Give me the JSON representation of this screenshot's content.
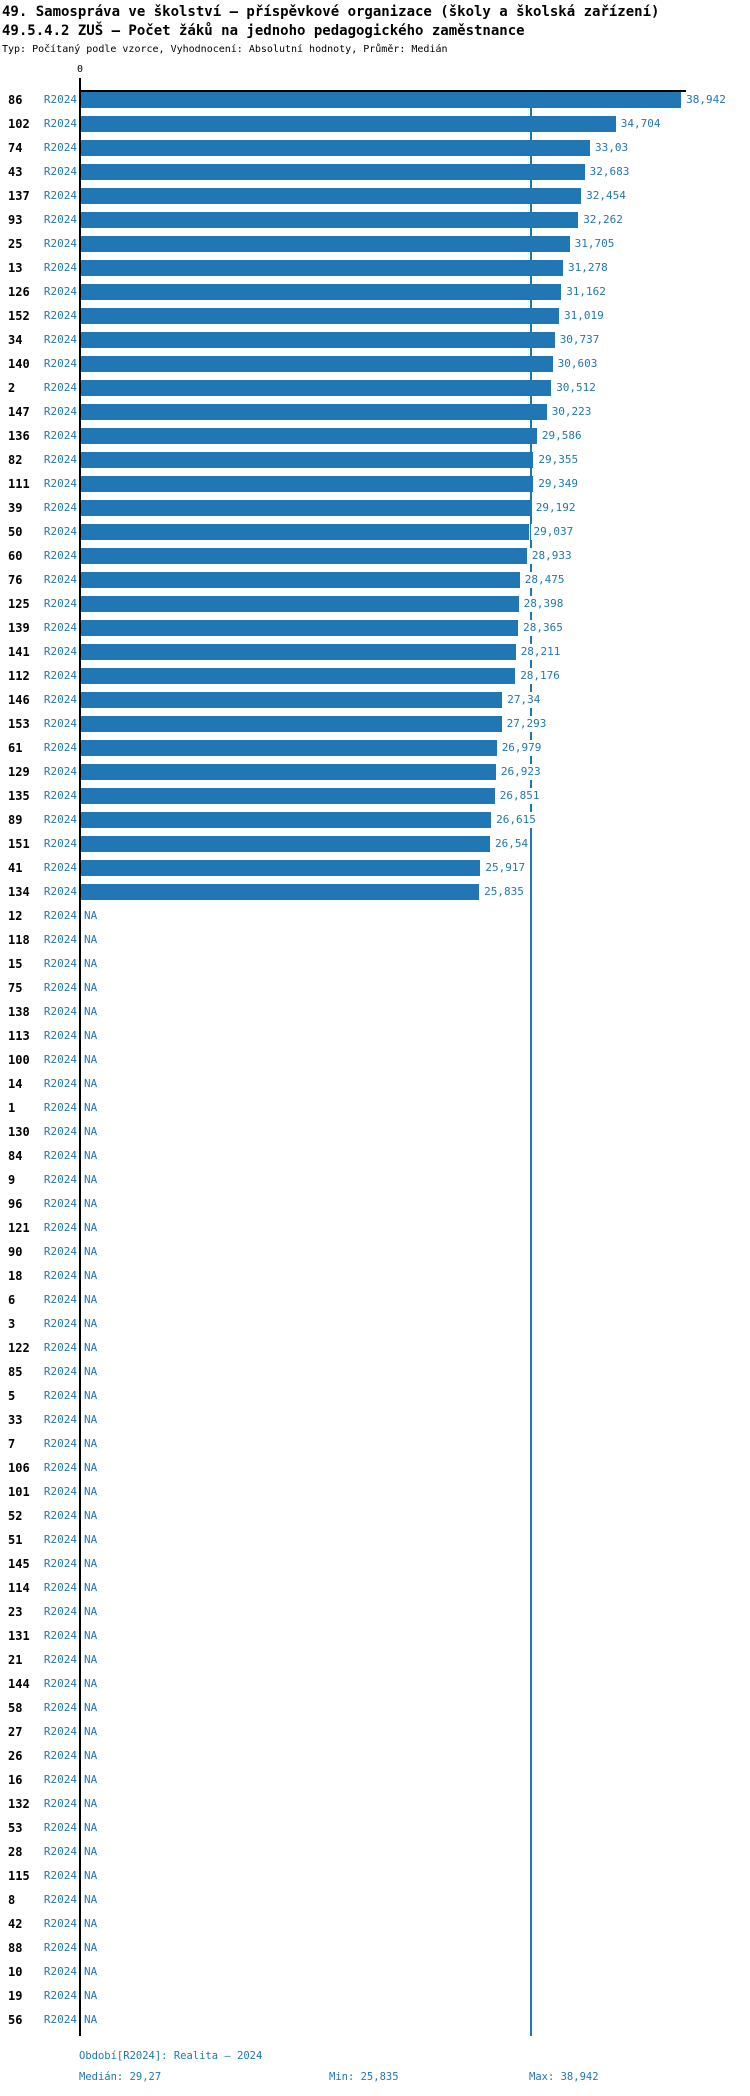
{
  "header": {
    "title": "49. Samospráva ve školství – příspěvkové organizace (školy a školská zařízení)",
    "subtitle": "49.5.4.2 ZUŠ – Počet žáků na jednoho pedagogického zaměstnance",
    "meta": "Typ: Počítaný podle vzorce, Vyhodnocení: Absolutní hodnoty, Průměr: Medián"
  },
  "chart_data": {
    "type": "bar",
    "orientation": "horizontal",
    "title": "49.5.4.2 ZUŠ – Počet žáků na jednoho pedagogického zaměstnance",
    "x_axis": {
      "origin_label": "0",
      "range": [
        0,
        39.3
      ],
      "grid": false
    },
    "legend": "none",
    "bar_color": "#2077b4",
    "median_line_value": 29.27,
    "median_line_color": "#1f77b4",
    "na_text": "NA",
    "rows": [
      {
        "id": "86",
        "period": "R2024",
        "display": "38,942",
        "value": 38.942
      },
      {
        "id": "102",
        "period": "R2024",
        "display": "34,704",
        "value": 34.704
      },
      {
        "id": "74",
        "period": "R2024",
        "display": "33,03",
        "value": 33.03
      },
      {
        "id": "43",
        "period": "R2024",
        "display": "32,683",
        "value": 32.683
      },
      {
        "id": "137",
        "period": "R2024",
        "display": "32,454",
        "value": 32.454
      },
      {
        "id": "93",
        "period": "R2024",
        "display": "32,262",
        "value": 32.262
      },
      {
        "id": "25",
        "period": "R2024",
        "display": "31,705",
        "value": 31.705
      },
      {
        "id": "13",
        "period": "R2024",
        "display": "31,278",
        "value": 31.278
      },
      {
        "id": "126",
        "period": "R2024",
        "display": "31,162",
        "value": 31.162
      },
      {
        "id": "152",
        "period": "R2024",
        "display": "31,019",
        "value": 31.019
      },
      {
        "id": "34",
        "period": "R2024",
        "display": "30,737",
        "value": 30.737
      },
      {
        "id": "140",
        "period": "R2024",
        "display": "30,603",
        "value": 30.603
      },
      {
        "id": "2",
        "period": "R2024",
        "display": "30,512",
        "value": 30.512
      },
      {
        "id": "147",
        "period": "R2024",
        "display": "30,223",
        "value": 30.223
      },
      {
        "id": "136",
        "period": "R2024",
        "display": "29,586",
        "value": 29.586
      },
      {
        "id": "82",
        "period": "R2024",
        "display": "29,355",
        "value": 29.355
      },
      {
        "id": "111",
        "period": "R2024",
        "display": "29,349",
        "value": 29.349
      },
      {
        "id": "39",
        "period": "R2024",
        "display": "29,192",
        "value": 29.192
      },
      {
        "id": "50",
        "period": "R2024",
        "display": "29,037",
        "value": 29.037
      },
      {
        "id": "60",
        "period": "R2024",
        "display": "28,933",
        "value": 28.933
      },
      {
        "id": "76",
        "period": "R2024",
        "display": "28,475",
        "value": 28.475
      },
      {
        "id": "125",
        "period": "R2024",
        "display": "28,398",
        "value": 28.398
      },
      {
        "id": "139",
        "period": "R2024",
        "display": "28,365",
        "value": 28.365
      },
      {
        "id": "141",
        "period": "R2024",
        "display": "28,211",
        "value": 28.211
      },
      {
        "id": "112",
        "period": "R2024",
        "display": "28,176",
        "value": 28.176
      },
      {
        "id": "146",
        "period": "R2024",
        "display": "27,34",
        "value": 27.34
      },
      {
        "id": "153",
        "period": "R2024",
        "display": "27,293",
        "value": 27.293
      },
      {
        "id": "61",
        "period": "R2024",
        "display": "26,979",
        "value": 26.979
      },
      {
        "id": "129",
        "period": "R2024",
        "display": "26,923",
        "value": 26.923
      },
      {
        "id": "135",
        "period": "R2024",
        "display": "26,851",
        "value": 26.851
      },
      {
        "id": "89",
        "period": "R2024",
        "display": "26,615",
        "value": 26.615
      },
      {
        "id": "151",
        "period": "R2024",
        "display": "26,54",
        "value": 26.54
      },
      {
        "id": "41",
        "period": "R2024",
        "display": "25,917",
        "value": 25.917
      },
      {
        "id": "134",
        "period": "R2024",
        "display": "25,835",
        "value": 25.835
      },
      {
        "id": "12",
        "period": "R2024",
        "display": "NA",
        "value": null
      },
      {
        "id": "118",
        "period": "R2024",
        "display": "NA",
        "value": null
      },
      {
        "id": "15",
        "period": "R2024",
        "display": "NA",
        "value": null
      },
      {
        "id": "75",
        "period": "R2024",
        "display": "NA",
        "value": null
      },
      {
        "id": "138",
        "period": "R2024",
        "display": "NA",
        "value": null
      },
      {
        "id": "113",
        "period": "R2024",
        "display": "NA",
        "value": null
      },
      {
        "id": "100",
        "period": "R2024",
        "display": "NA",
        "value": null
      },
      {
        "id": "14",
        "period": "R2024",
        "display": "NA",
        "value": null
      },
      {
        "id": "1",
        "period": "R2024",
        "display": "NA",
        "value": null
      },
      {
        "id": "130",
        "period": "R2024",
        "display": "NA",
        "value": null
      },
      {
        "id": "84",
        "period": "R2024",
        "display": "NA",
        "value": null
      },
      {
        "id": "9",
        "period": "R2024",
        "display": "NA",
        "value": null
      },
      {
        "id": "96",
        "period": "R2024",
        "display": "NA",
        "value": null
      },
      {
        "id": "121",
        "period": "R2024",
        "display": "NA",
        "value": null
      },
      {
        "id": "90",
        "period": "R2024",
        "display": "NA",
        "value": null
      },
      {
        "id": "18",
        "period": "R2024",
        "display": "NA",
        "value": null
      },
      {
        "id": "6",
        "period": "R2024",
        "display": "NA",
        "value": null
      },
      {
        "id": "3",
        "period": "R2024",
        "display": "NA",
        "value": null
      },
      {
        "id": "122",
        "period": "R2024",
        "display": "NA",
        "value": null
      },
      {
        "id": "85",
        "period": "R2024",
        "display": "NA",
        "value": null
      },
      {
        "id": "5",
        "period": "R2024",
        "display": "NA",
        "value": null
      },
      {
        "id": "33",
        "period": "R2024",
        "display": "NA",
        "value": null
      },
      {
        "id": "7",
        "period": "R2024",
        "display": "NA",
        "value": null
      },
      {
        "id": "106",
        "period": "R2024",
        "display": "NA",
        "value": null
      },
      {
        "id": "101",
        "period": "R2024",
        "display": "NA",
        "value": null
      },
      {
        "id": "52",
        "period": "R2024",
        "display": "NA",
        "value": null
      },
      {
        "id": "51",
        "period": "R2024",
        "display": "NA",
        "value": null
      },
      {
        "id": "145",
        "period": "R2024",
        "display": "NA",
        "value": null
      },
      {
        "id": "114",
        "period": "R2024",
        "display": "NA",
        "value": null
      },
      {
        "id": "23",
        "period": "R2024",
        "display": "NA",
        "value": null
      },
      {
        "id": "131",
        "period": "R2024",
        "display": "NA",
        "value": null
      },
      {
        "id": "21",
        "period": "R2024",
        "display": "NA",
        "value": null
      },
      {
        "id": "144",
        "period": "R2024",
        "display": "NA",
        "value": null
      },
      {
        "id": "58",
        "period": "R2024",
        "display": "NA",
        "value": null
      },
      {
        "id": "27",
        "period": "R2024",
        "display": "NA",
        "value": null
      },
      {
        "id": "26",
        "period": "R2024",
        "display": "NA",
        "value": null
      },
      {
        "id": "16",
        "period": "R2024",
        "display": "NA",
        "value": null
      },
      {
        "id": "132",
        "period": "R2024",
        "display": "NA",
        "value": null
      },
      {
        "id": "53",
        "period": "R2024",
        "display": "NA",
        "value": null
      },
      {
        "id": "28",
        "period": "R2024",
        "display": "NA",
        "value": null
      },
      {
        "id": "115",
        "period": "R2024",
        "display": "NA",
        "value": null
      },
      {
        "id": "8",
        "period": "R2024",
        "display": "NA",
        "value": null
      },
      {
        "id": "42",
        "period": "R2024",
        "display": "NA",
        "value": null
      },
      {
        "id": "88",
        "period": "R2024",
        "display": "NA",
        "value": null
      },
      {
        "id": "10",
        "period": "R2024",
        "display": "NA",
        "value": null
      },
      {
        "id": "19",
        "period": "R2024",
        "display": "NA",
        "value": null
      },
      {
        "id": "56",
        "period": "R2024",
        "display": "NA",
        "value": null
      }
    ]
  },
  "footer": {
    "period_line": "Období[R2024]: Realita – 2024",
    "median_label": "Medián: 29,27",
    "min_label": "Min: 25,835",
    "max_label": "Max: 38,942"
  }
}
